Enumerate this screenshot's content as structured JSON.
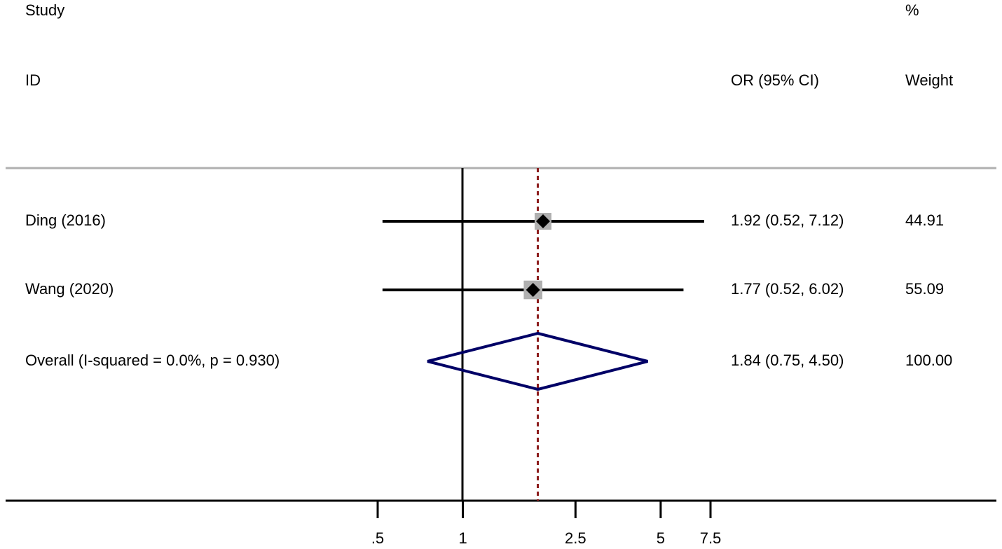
{
  "chart_data": {
    "type": "forest",
    "log_scale": true,
    "headers": {
      "study": "Study",
      "id": "ID",
      "effect": "OR (95% CI)",
      "percent": "%",
      "weight": "Weight"
    },
    "studies": [
      {
        "id": "Ding (2016)",
        "or": 1.92,
        "ci": [
          0.52,
          7.12
        ],
        "effect_label": "1.92 (0.52, 7.12)",
        "weight": 44.91
      },
      {
        "id": "Wang (2020)",
        "or": 1.77,
        "ci": [
          0.52,
          6.02
        ],
        "effect_label": "1.77 (0.52, 6.02)",
        "weight": 55.09
      }
    ],
    "overall": {
      "id": "Overall  (I-squared = 0.0%, p = 0.930)",
      "or": 1.84,
      "ci": [
        0.75,
        4.5
      ],
      "effect_label": "1.84 (0.75, 4.50)",
      "weight": 100,
      "weight_label": "100.00"
    },
    "xlim": [
      0.5,
      7.5
    ],
    "xticks": [
      {
        "value": 0.5,
        "label": ".5"
      },
      1,
      2.5,
      5,
      7.5
    ],
    "colors": {
      "box": "#b0b0b0",
      "point": "#000000",
      "ci": "#000000",
      "diamond": "#000066",
      "overall_line": "#8b1a1a"
    }
  }
}
